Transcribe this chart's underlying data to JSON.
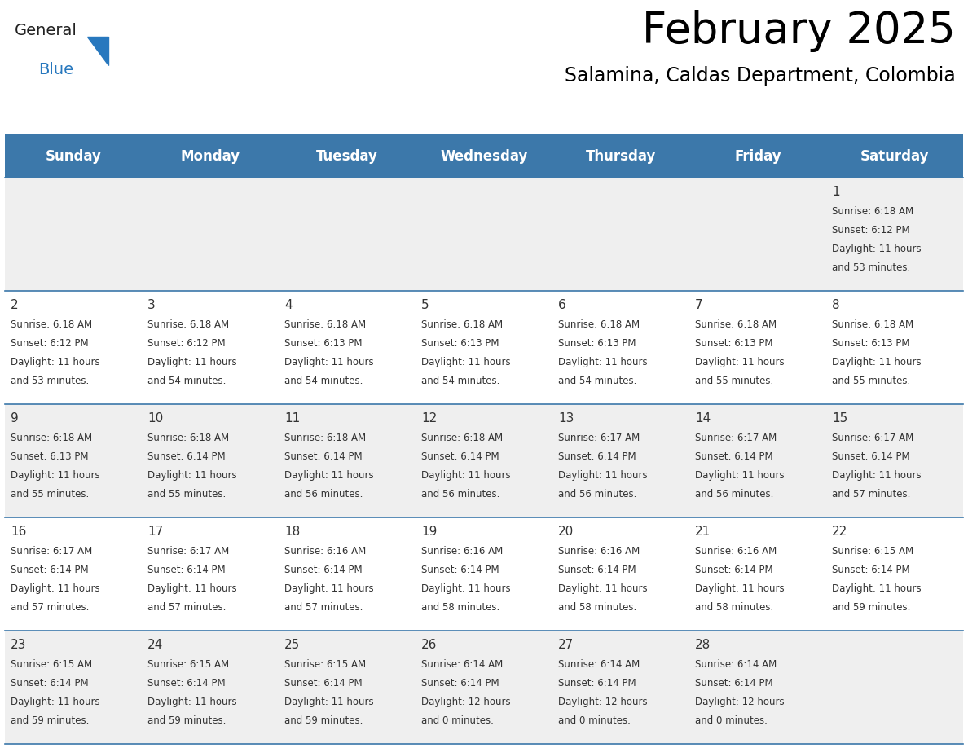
{
  "title": "February 2025",
  "subtitle": "Salamina, Caldas Department, Colombia",
  "header_bg_color": "#3C78AA",
  "header_text_color": "#FFFFFF",
  "row_bg_even": "#EFEFEF",
  "row_bg_odd": "#FFFFFF",
  "day_headers": [
    "Sunday",
    "Monday",
    "Tuesday",
    "Wednesday",
    "Thursday",
    "Friday",
    "Saturday"
  ],
  "title_fontsize": 38,
  "subtitle_fontsize": 17,
  "header_fontsize": 12,
  "cell_fontsize": 8.5,
  "day_num_fontsize": 11,
  "separator_color": "#3C78AA",
  "text_color": "#333333",
  "logo_general_color": "#222222",
  "logo_blue_color": "#2878BE",
  "calendar_data": [
    [
      null,
      null,
      null,
      null,
      null,
      null,
      {
        "day": 1,
        "sunrise": "6:18 AM",
        "sunset": "6:12 PM",
        "daylight_hours": 11,
        "daylight_minutes": 53
      }
    ],
    [
      {
        "day": 2,
        "sunrise": "6:18 AM",
        "sunset": "6:12 PM",
        "daylight_hours": 11,
        "daylight_minutes": 53
      },
      {
        "day": 3,
        "sunrise": "6:18 AM",
        "sunset": "6:12 PM",
        "daylight_hours": 11,
        "daylight_minutes": 54
      },
      {
        "day": 4,
        "sunrise": "6:18 AM",
        "sunset": "6:13 PM",
        "daylight_hours": 11,
        "daylight_minutes": 54
      },
      {
        "day": 5,
        "sunrise": "6:18 AM",
        "sunset": "6:13 PM",
        "daylight_hours": 11,
        "daylight_minutes": 54
      },
      {
        "day": 6,
        "sunrise": "6:18 AM",
        "sunset": "6:13 PM",
        "daylight_hours": 11,
        "daylight_minutes": 54
      },
      {
        "day": 7,
        "sunrise": "6:18 AM",
        "sunset": "6:13 PM",
        "daylight_hours": 11,
        "daylight_minutes": 55
      },
      {
        "day": 8,
        "sunrise": "6:18 AM",
        "sunset": "6:13 PM",
        "daylight_hours": 11,
        "daylight_minutes": 55
      }
    ],
    [
      {
        "day": 9,
        "sunrise": "6:18 AM",
        "sunset": "6:13 PM",
        "daylight_hours": 11,
        "daylight_minutes": 55
      },
      {
        "day": 10,
        "sunrise": "6:18 AM",
        "sunset": "6:14 PM",
        "daylight_hours": 11,
        "daylight_minutes": 55
      },
      {
        "day": 11,
        "sunrise": "6:18 AM",
        "sunset": "6:14 PM",
        "daylight_hours": 11,
        "daylight_minutes": 56
      },
      {
        "day": 12,
        "sunrise": "6:18 AM",
        "sunset": "6:14 PM",
        "daylight_hours": 11,
        "daylight_minutes": 56
      },
      {
        "day": 13,
        "sunrise": "6:17 AM",
        "sunset": "6:14 PM",
        "daylight_hours": 11,
        "daylight_minutes": 56
      },
      {
        "day": 14,
        "sunrise": "6:17 AM",
        "sunset": "6:14 PM",
        "daylight_hours": 11,
        "daylight_minutes": 56
      },
      {
        "day": 15,
        "sunrise": "6:17 AM",
        "sunset": "6:14 PM",
        "daylight_hours": 11,
        "daylight_minutes": 57
      }
    ],
    [
      {
        "day": 16,
        "sunrise": "6:17 AM",
        "sunset": "6:14 PM",
        "daylight_hours": 11,
        "daylight_minutes": 57
      },
      {
        "day": 17,
        "sunrise": "6:17 AM",
        "sunset": "6:14 PM",
        "daylight_hours": 11,
        "daylight_minutes": 57
      },
      {
        "day": 18,
        "sunrise": "6:16 AM",
        "sunset": "6:14 PM",
        "daylight_hours": 11,
        "daylight_minutes": 57
      },
      {
        "day": 19,
        "sunrise": "6:16 AM",
        "sunset": "6:14 PM",
        "daylight_hours": 11,
        "daylight_minutes": 58
      },
      {
        "day": 20,
        "sunrise": "6:16 AM",
        "sunset": "6:14 PM",
        "daylight_hours": 11,
        "daylight_minutes": 58
      },
      {
        "day": 21,
        "sunrise": "6:16 AM",
        "sunset": "6:14 PM",
        "daylight_hours": 11,
        "daylight_minutes": 58
      },
      {
        "day": 22,
        "sunrise": "6:15 AM",
        "sunset": "6:14 PM",
        "daylight_hours": 11,
        "daylight_minutes": 59
      }
    ],
    [
      {
        "day": 23,
        "sunrise": "6:15 AM",
        "sunset": "6:14 PM",
        "daylight_hours": 11,
        "daylight_minutes": 59
      },
      {
        "day": 24,
        "sunrise": "6:15 AM",
        "sunset": "6:14 PM",
        "daylight_hours": 11,
        "daylight_minutes": 59
      },
      {
        "day": 25,
        "sunrise": "6:15 AM",
        "sunset": "6:14 PM",
        "daylight_hours": 11,
        "daylight_minutes": 59
      },
      {
        "day": 26,
        "sunrise": "6:14 AM",
        "sunset": "6:14 PM",
        "daylight_hours": 12,
        "daylight_minutes": 0
      },
      {
        "day": 27,
        "sunrise": "6:14 AM",
        "sunset": "6:14 PM",
        "daylight_hours": 12,
        "daylight_minutes": 0
      },
      {
        "day": 28,
        "sunrise": "6:14 AM",
        "sunset": "6:14 PM",
        "daylight_hours": 12,
        "daylight_minutes": 0
      },
      null
    ]
  ]
}
